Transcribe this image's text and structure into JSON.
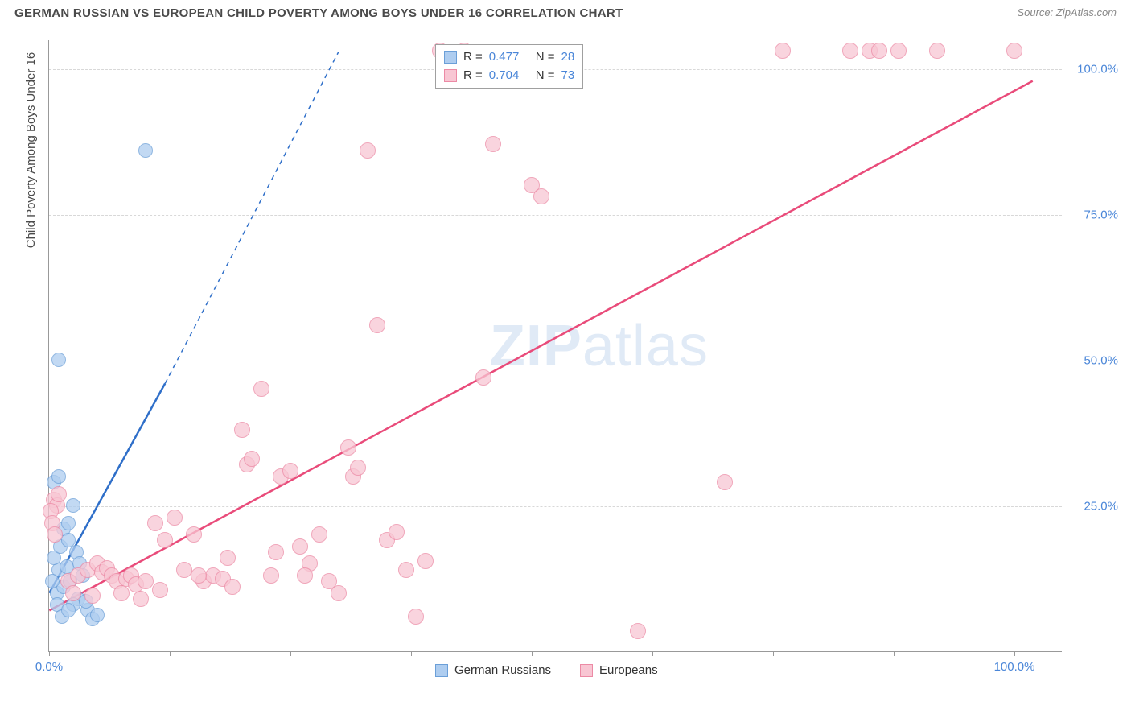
{
  "title": "GERMAN RUSSIAN VS EUROPEAN CHILD POVERTY AMONG BOYS UNDER 16 CORRELATION CHART",
  "source": "Source: ZipAtlas.com",
  "watermark_a": "ZIP",
  "watermark_b": "atlas",
  "ylabel": "Child Poverty Among Boys Under 16",
  "chart": {
    "xlim": [
      0,
      105
    ],
    "ylim": [
      0,
      105
    ],
    "grid_y": [
      25,
      50,
      75,
      100
    ],
    "grid_y_labels": [
      "25.0%",
      "50.0%",
      "75.0%",
      "100.0%"
    ],
    "xtick_positions": [
      0,
      12.5,
      25,
      37.5,
      50,
      62.5,
      75,
      87.5,
      100
    ],
    "xtick_labels": {
      "0": "0.0%",
      "100": "100.0%"
    },
    "grid_color": "#d8d8d8",
    "axis_color": "#999999",
    "label_color": "#4a86d8"
  },
  "series": [
    {
      "key": "german_russians",
      "name": "German Russians",
      "fill": "#aecdf0",
      "stroke": "#6b9fd8",
      "r_label": "R =",
      "r_value": "0.477",
      "n_label": "N =",
      "n_value": "28",
      "marker_radius": 9,
      "trend": {
        "x1": 0,
        "y1": 10,
        "x2": 12,
        "y2": 46,
        "dash_x2": 30,
        "dash_y2": 103,
        "color": "#2f6fc9",
        "width": 2.5
      },
      "points": [
        [
          0.5,
          29
        ],
        [
          1,
          30
        ],
        [
          1.5,
          21
        ],
        [
          2,
          22
        ],
        [
          2.5,
          25
        ],
        [
          1,
          14
        ],
        [
          1.8,
          14.5
        ],
        [
          0.5,
          16
        ],
        [
          1.2,
          18
        ],
        [
          2,
          19
        ],
        [
          2.8,
          17
        ],
        [
          3.2,
          15
        ],
        [
          3.5,
          13
        ],
        [
          0.8,
          10
        ],
        [
          1.5,
          11
        ],
        [
          2.2,
          12
        ],
        [
          3,
          9
        ],
        [
          4,
          7
        ],
        [
          4.5,
          5.5
        ],
        [
          5,
          6.2
        ],
        [
          1,
          50
        ],
        [
          10,
          86
        ],
        [
          0.3,
          12
        ],
        [
          0.8,
          8
        ],
        [
          2.5,
          8
        ],
        [
          3.8,
          8.5
        ],
        [
          1.3,
          6
        ],
        [
          2,
          7
        ]
      ]
    },
    {
      "key": "europeans",
      "name": "Europeans",
      "fill": "#f8c6d3",
      "stroke": "#ec8aa5",
      "r_label": "R =",
      "r_value": "0.704",
      "n_label": "N =",
      "n_value": "73",
      "marker_radius": 10,
      "trend": {
        "x1": 0,
        "y1": 7,
        "x2": 102,
        "y2": 98,
        "color": "#e94b7a",
        "width": 2.5
      },
      "points": [
        [
          0.5,
          26
        ],
        [
          0.8,
          25
        ],
        [
          1,
          27
        ],
        [
          2,
          12
        ],
        [
          3,
          13
        ],
        [
          4,
          14
        ],
        [
          5,
          15
        ],
        [
          5.5,
          13.5
        ],
        [
          6,
          14.2
        ],
        [
          6.5,
          13
        ],
        [
          7,
          12
        ],
        [
          8,
          12.5
        ],
        [
          8.5,
          13
        ],
        [
          9,
          11.5
        ],
        [
          10,
          12
        ],
        [
          11,
          22
        ],
        [
          12,
          19
        ],
        [
          13,
          23
        ],
        [
          14,
          14
        ],
        [
          15,
          20
        ],
        [
          16,
          12
        ],
        [
          17,
          13
        ],
        [
          18,
          12.5
        ],
        [
          19,
          11
        ],
        [
          20,
          38
        ],
        [
          20.5,
          32
        ],
        [
          21,
          33
        ],
        [
          22,
          45
        ],
        [
          23,
          13
        ],
        [
          24,
          30
        ],
        [
          25,
          31
        ],
        [
          26,
          18
        ],
        [
          27,
          15
        ],
        [
          28,
          20
        ],
        [
          29,
          12
        ],
        [
          30,
          10
        ],
        [
          31,
          35
        ],
        [
          31.5,
          30
        ],
        [
          32,
          31.5
        ],
        [
          33,
          86
        ],
        [
          34,
          56
        ],
        [
          35,
          19
        ],
        [
          36,
          20.5
        ],
        [
          37,
          14
        ],
        [
          38,
          6
        ],
        [
          39,
          15.5
        ],
        [
          40.5,
          103
        ],
        [
          43,
          103
        ],
        [
          45,
          47
        ],
        [
          46,
          87
        ],
        [
          50,
          80
        ],
        [
          51,
          78
        ],
        [
          61,
          3.5
        ],
        [
          70,
          29
        ],
        [
          76,
          103
        ],
        [
          83,
          103
        ],
        [
          85,
          103
        ],
        [
          86,
          103
        ],
        [
          88,
          103
        ],
        [
          92,
          103
        ],
        [
          100,
          103
        ],
        [
          7.5,
          10
        ],
        [
          9.5,
          9
        ],
        [
          11.5,
          10.5
        ],
        [
          15.5,
          13
        ],
        [
          18.5,
          16
        ],
        [
          23.5,
          17
        ],
        [
          26.5,
          13
        ],
        [
          2.5,
          10
        ],
        [
          4.5,
          9.5
        ],
        [
          0.2,
          24
        ],
        [
          0.3,
          22
        ],
        [
          0.6,
          20
        ]
      ]
    }
  ]
}
